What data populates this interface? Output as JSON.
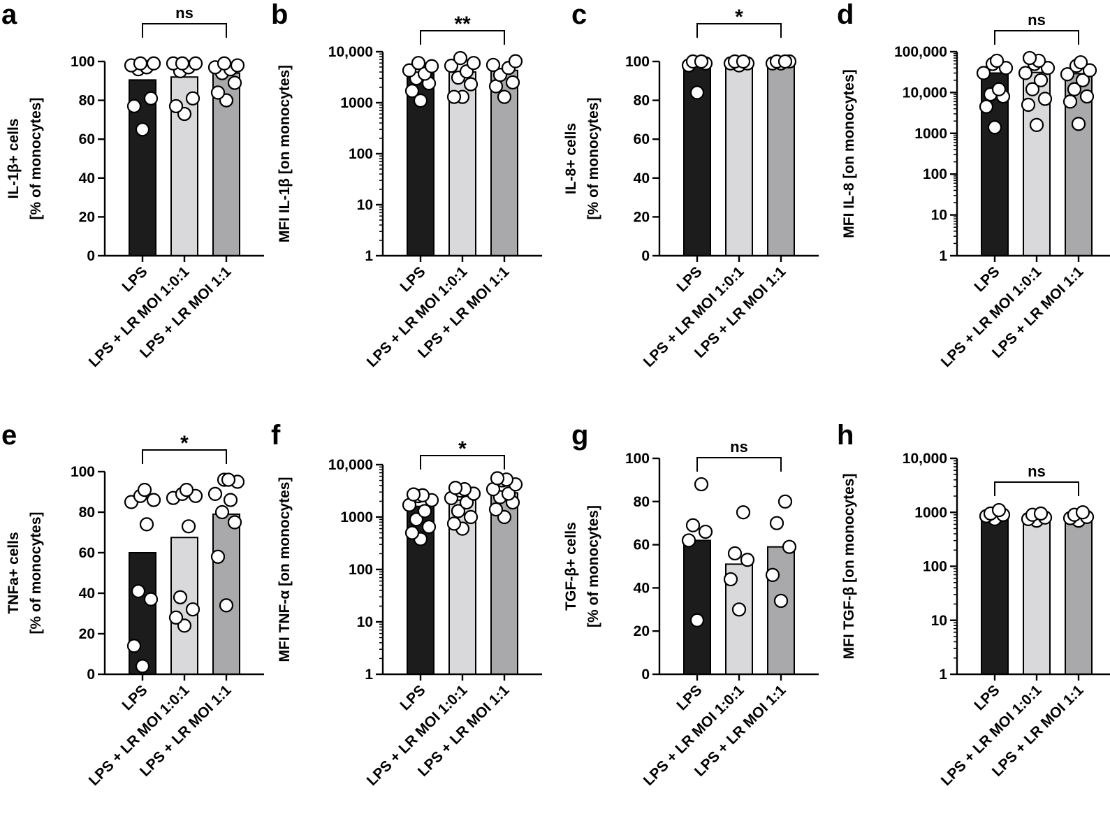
{
  "colors": {
    "bar_lps": "#1c1c1c",
    "bar_lr_low": "#d9d9db",
    "bar_lr_high": "#a9a9ab",
    "dot_fill": "#ffffff",
    "dot_on_dark": "#ffffff",
    "axis": "#000000"
  },
  "chart_data": [
    {
      "panel": "a",
      "type": "bar",
      "ylabel_lines": [
        "IL-1β+ cells",
        "[% of monocytes]"
      ],
      "categories": [
        "LPS",
        "LPS + LR MOI 1:0:1",
        "LPS + LR MOI 1:1"
      ],
      "scale": "linear",
      "ylim": [
        0,
        100
      ],
      "yticks": [
        0,
        20,
        40,
        60,
        80,
        100
      ],
      "ytick_labels": [
        "0",
        "20",
        "40",
        "60",
        "80",
        "100"
      ],
      "values": [
        90.5,
        92,
        94
      ],
      "points": [
        [
          65,
          77,
          81,
          96,
          97,
          98,
          99,
          99
        ],
        [
          73,
          77,
          81,
          95,
          97,
          99,
          99,
          99
        ],
        [
          80,
          84,
          89,
          94,
          96,
          97,
          98,
          99
        ]
      ],
      "significance": {
        "label": "ns",
        "from": 0,
        "to": 2
      }
    },
    {
      "panel": "b",
      "type": "bar",
      "ylabel_lines": [
        "MFI IL-1β [on monocytes]"
      ],
      "categories": [
        "LPS",
        "LPS + LR MOI 1:0:1",
        "LPS + LR MOI 1:1"
      ],
      "scale": "log",
      "ylim": [
        1,
        10000
      ],
      "yticks": [
        1,
        10,
        100,
        1000,
        10000
      ],
      "ytick_labels": [
        "1",
        "10",
        "100",
        "1000",
        "10,000"
      ],
      "values": [
        3700,
        4000,
        4300
      ],
      "points": [
        [
          1100,
          1700,
          2400,
          3000,
          3700,
          4300,
          5200,
          6000
        ],
        [
          1300,
          1300,
          2300,
          3100,
          4100,
          5300,
          6000,
          7500
        ],
        [
          1300,
          2100,
          2500,
          3500,
          4800,
          5500,
          6500
        ]
      ],
      "significance": {
        "label": "**",
        "from": 0,
        "to": 2
      }
    },
    {
      "panel": "c",
      "type": "bar",
      "ylabel_lines": [
        "IL-8+ cells",
        "[% of monocytes]"
      ],
      "categories": [
        "LPS",
        "LPS + LR MOI 1:0:1",
        "LPS + LR MOI 1:1"
      ],
      "scale": "linear",
      "ylim": [
        0,
        100
      ],
      "yticks": [
        0,
        20,
        40,
        60,
        80,
        100
      ],
      "ytick_labels": [
        "0",
        "20",
        "40",
        "60",
        "80",
        "100"
      ],
      "values": [
        98.5,
        99.5,
        99.7
      ],
      "points": [
        [
          84,
          98,
          99,
          100,
          100
        ],
        [
          98,
          99,
          99,
          100,
          100
        ],
        [
          99,
          99,
          100,
          100,
          100
        ]
      ],
      "significance": {
        "label": "*",
        "from": 0,
        "to": 2
      }
    },
    {
      "panel": "d",
      "type": "bar",
      "ylabel_lines": [
        "MFI IL-8 [on monocytes]"
      ],
      "categories": [
        "LPS",
        "LPS + LR MOI 1:0:1",
        "LPS + LR MOI 1:1"
      ],
      "scale": "log",
      "ylim": [
        1,
        100000
      ],
      "yticks": [
        1,
        10,
        100,
        1000,
        10000,
        100000
      ],
      "ytick_labels": [
        "1",
        "10",
        "100",
        "1000",
        "10,000",
        "100,000"
      ],
      "values": [
        30000,
        31000,
        29000
      ],
      "points": [
        [
          1400,
          4500,
          8000,
          9000,
          12000,
          30000,
          40000,
          50000,
          60000
        ],
        [
          1600,
          5000,
          7000,
          12000,
          20000,
          30000,
          40000,
          50000,
          60000,
          70000
        ],
        [
          1700,
          6000,
          8000,
          12000,
          20000,
          28000,
          35000,
          45000,
          55000
        ]
      ],
      "significance": {
        "label": "ns",
        "from": 0,
        "to": 2
      }
    },
    {
      "panel": "e",
      "type": "bar",
      "ylabel_lines": [
        "TNFa+ cells",
        "[% of monocytes]"
      ],
      "categories": [
        "LPS",
        "LPS + LR MOI 1:0:1",
        "LPS + LR MOI 1:1"
      ],
      "scale": "linear",
      "ylim": [
        0,
        100
      ],
      "yticks": [
        0,
        20,
        40,
        60,
        80,
        100
      ],
      "ytick_labels": [
        "0",
        "20",
        "40",
        "60",
        "80",
        "100"
      ],
      "values": [
        60,
        67.5,
        79
      ],
      "points": [
        [
          4,
          14,
          37,
          41,
          74,
          85,
          86,
          88,
          91
        ],
        [
          24,
          28,
          32,
          38,
          73,
          87,
          88,
          89,
          91
        ],
        [
          34,
          58,
          75,
          80,
          86,
          89,
          95,
          96,
          96
        ]
      ],
      "significance": {
        "label": "*",
        "from": 0,
        "to": 2
      }
    },
    {
      "panel": "f",
      "type": "bar",
      "ylabel_lines": [
        "MFI TNF-α [on monocytes]"
      ],
      "categories": [
        "LPS",
        "LPS + LR MOI 1:0:1",
        "LPS + LR MOI 1:1"
      ],
      "scale": "log",
      "ylim": [
        1,
        10000
      ],
      "yticks": [
        1,
        10,
        100,
        1000,
        10000
      ],
      "ytick_labels": [
        "1",
        "10",
        "100",
        "1000",
        "10,000"
      ],
      "values": [
        1600,
        2100,
        2900
      ],
      "points": [
        [
          380,
          500,
          650,
          900,
          1300,
          1700,
          2100,
          2500,
          2600,
          2700
        ],
        [
          600,
          750,
          1000,
          1300,
          1900,
          2300,
          2800,
          3200,
          3400,
          3600
        ],
        [
          1000,
          1400,
          1900,
          2400,
          2800,
          3400,
          4200,
          5000,
          5200,
          5500
        ]
      ],
      "significance": {
        "label": "*",
        "from": 0,
        "to": 2
      }
    },
    {
      "panel": "g",
      "type": "bar",
      "ylabel_lines": [
        "TGF-β+ cells",
        "[% of monocytes]"
      ],
      "categories": [
        "LPS",
        "LPS + LR MOI 1:0:1",
        "LPS + LR MOI 1:1"
      ],
      "scale": "linear",
      "ylim": [
        0,
        100
      ],
      "yticks": [
        0,
        20,
        40,
        60,
        80,
        100
      ],
      "ytick_labels": [
        "0",
        "20",
        "40",
        "60",
        "80",
        "100"
      ],
      "values": [
        62,
        51,
        59
      ],
      "points": [
        [
          25,
          62,
          66,
          69,
          88
        ],
        [
          30,
          44,
          53,
          56,
          75
        ],
        [
          34,
          46,
          59,
          70,
          80
        ]
      ],
      "significance": {
        "label": "ns",
        "from": 0,
        "to": 2
      }
    },
    {
      "panel": "h",
      "type": "bar",
      "ylabel_lines": [
        "MFI TGF-β [on monocytes]"
      ],
      "categories": [
        "LPS",
        "LPS + LR MOI 1:0:1",
        "LPS + LR MOI 1:1"
      ],
      "scale": "log",
      "ylim": [
        1,
        10000
      ],
      "yticks": [
        1,
        10,
        100,
        1000,
        10000
      ],
      "ytick_labels": [
        "1",
        "10",
        "100",
        "1000",
        "10,000"
      ],
      "values": [
        880,
        820,
        850
      ],
      "points": [
        [
          750,
          850,
          900,
          950,
          1100
        ],
        [
          700,
          750,
          800,
          900,
          950
        ],
        [
          700,
          780,
          820,
          900,
          1000
        ]
      ],
      "significance": {
        "label": "ns",
        "from": 0,
        "to": 2
      }
    }
  ]
}
